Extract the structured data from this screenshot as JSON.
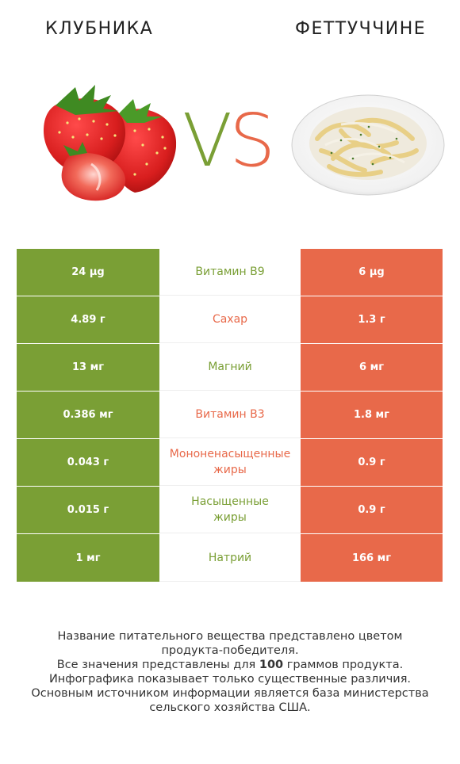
{
  "header": {
    "left_title": "КЛУБНИКА",
    "right_title": "ФЕТТУЧЧИНЕ",
    "vs_v": "V",
    "vs_s": "S"
  },
  "colors": {
    "winner_left": "#7a9f35",
    "winner_right": "#e8694a"
  },
  "rows": [
    {
      "left": "24 µg",
      "nutrient": "Витамин B9",
      "right": "6 µg",
      "winner": "left"
    },
    {
      "left": "4.89 г",
      "nutrient": "Сахар",
      "right": "1.3 г",
      "winner": "right"
    },
    {
      "left": "13 мг",
      "nutrient": "Магний",
      "right": "6 мг",
      "winner": "left"
    },
    {
      "left": "0.386 мг",
      "nutrient": "Витамин B3",
      "right": "1.8 мг",
      "winner": "right"
    },
    {
      "left": "0.043 г",
      "nutrient_l1": "Мононенасыщенные",
      "nutrient_l2": "жиры",
      "right": "0.9 г",
      "winner": "right"
    },
    {
      "left": "0.015 г",
      "nutrient_l1": "Насыщенные",
      "nutrient_l2": "жиры",
      "right": "0.9 г",
      "winner": "left"
    },
    {
      "left": "1 мг",
      "nutrient": "Натрий",
      "right": "166 мг",
      "winner": "left"
    }
  ],
  "footnote": {
    "line1": "Название питательного вещества представлено цветом",
    "line2": "продукта-победителя.",
    "line3_pre": "Все значения представлены для ",
    "line3_bold": "100",
    "line3_post": " граммов продукта.",
    "line4": "Инфографика показывает только существенные различия.",
    "line5": "Основным источником информации является база министерства",
    "line6": "сельского хозяйства США."
  },
  "icons": {
    "left_image": "strawberry-image",
    "right_image": "fettuccine-plate-image"
  }
}
